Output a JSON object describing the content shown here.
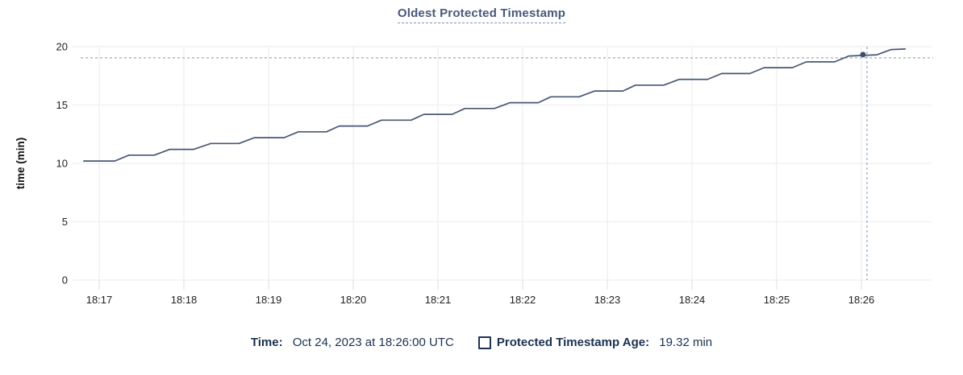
{
  "legend": {
    "time_label": "Time:",
    "time_value": " Oct 24, 2023 at 18:26:00 UTC",
    "series_label": "Protected Timestamp Age:",
    "series_value": " 19.32 min"
  },
  "colors": {
    "line": "#475872",
    "dot": "#3b4d68",
    "grid": "#efefef",
    "tick_below_axis": "#e4e4e4",
    "crosshair": "#96aec2",
    "axis_text": "#222222",
    "axis_title_text": "#111111",
    "title_text": "#47597a",
    "legend_text": "#1b3150",
    "background": "#ffffff"
  },
  "chart_data": {
    "type": "line",
    "title": "Oldest Protected Timestamp",
    "xlabel": "",
    "ylabel": "time (min)",
    "ylim": [
      0,
      20
    ],
    "y_ticks": [
      0,
      5,
      10,
      15,
      20
    ],
    "x_tick_labels": [
      "18:17",
      "18:18",
      "18:19",
      "18:20",
      "18:21",
      "18:22",
      "18:23",
      "18:24",
      "18:25",
      "18:26"
    ],
    "grid": true,
    "legend_position": "bottom",
    "series": [
      {
        "name": "Protected Timestamp Age",
        "unit": "min",
        "points": [
          [
            "18:16:49",
            10.2
          ],
          [
            "18:17:11",
            10.2
          ],
          [
            "18:17:21",
            10.7
          ],
          [
            "18:17:39",
            10.7
          ],
          [
            "18:17:50",
            11.2
          ],
          [
            "18:18:07",
            11.2
          ],
          [
            "18:18:19",
            11.7
          ],
          [
            "18:18:39",
            11.7
          ],
          [
            "18:18:50",
            12.2
          ],
          [
            "18:19:11",
            12.2
          ],
          [
            "18:19:21",
            12.7
          ],
          [
            "18:19:41",
            12.7
          ],
          [
            "18:19:50",
            13.2
          ],
          [
            "18:20:10",
            13.2
          ],
          [
            "18:20:20",
            13.7
          ],
          [
            "18:20:41",
            13.7
          ],
          [
            "18:20:50",
            14.2
          ],
          [
            "18:21:10",
            14.2
          ],
          [
            "18:21:19",
            14.7
          ],
          [
            "18:21:40",
            14.7
          ],
          [
            "18:21:51",
            15.2
          ],
          [
            "18:22:11",
            15.2
          ],
          [
            "18:22:20",
            15.7
          ],
          [
            "18:22:40",
            15.7
          ],
          [
            "18:22:51",
            16.2
          ],
          [
            "18:23:11",
            16.2
          ],
          [
            "18:23:20",
            16.7
          ],
          [
            "18:23:40",
            16.7
          ],
          [
            "18:23:51",
            17.2
          ],
          [
            "18:24:11",
            17.2
          ],
          [
            "18:24:21",
            17.7
          ],
          [
            "18:24:41",
            17.7
          ],
          [
            "18:24:51",
            18.2
          ],
          [
            "18:25:11",
            18.2
          ],
          [
            "18:25:21",
            18.7
          ],
          [
            "18:25:41",
            18.7
          ],
          [
            "18:25:51",
            19.2
          ],
          [
            "18:26:11",
            19.3
          ],
          [
            "18:26:21",
            19.75
          ],
          [
            "18:26:31",
            19.8
          ]
        ]
      }
    ],
    "hover_point": {
      "time": "18:26:00",
      "value": 19.32
    }
  }
}
